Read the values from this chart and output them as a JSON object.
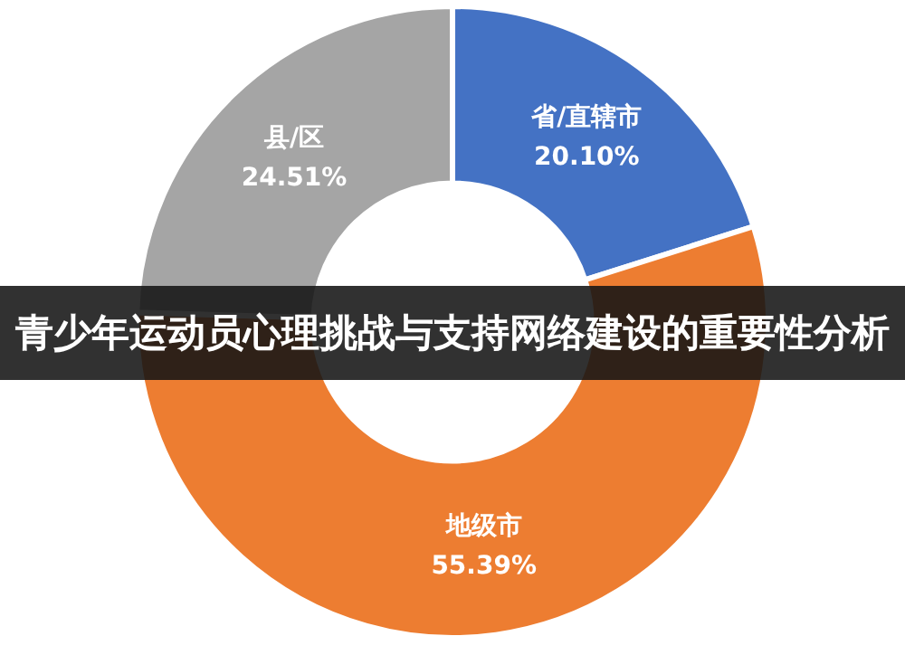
{
  "chart_data": {
    "type": "donut",
    "title": "青少年运动员心理挑战与支持网络建设的重要性分析",
    "categories": [
      "省/直辖市",
      "地级市",
      "县/区"
    ],
    "values": [
      20.1,
      55.39,
      24.51
    ],
    "value_labels": [
      "20.10%",
      "55.39%",
      "24.51%"
    ],
    "colors": [
      "#4472c4",
      "#ed7d31",
      "#a5a5a5"
    ],
    "legend": false
  }
}
